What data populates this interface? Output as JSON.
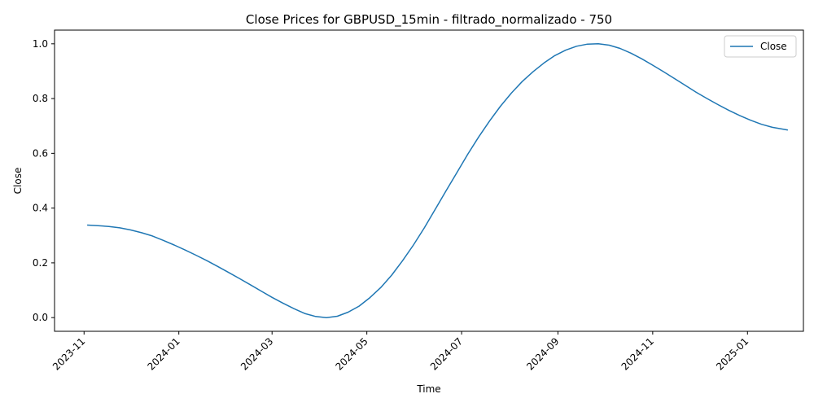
{
  "chart_data": {
    "type": "line",
    "title": "Close Prices for GBPUSD_15min - filtrado_normalizado - 750",
    "xlabel": "Time",
    "ylabel": "Close",
    "ylim": [
      -0.05,
      1.05
    ],
    "y_ticks": [
      "0.0",
      "0.2",
      "0.4",
      "0.6",
      "0.8",
      "1.0"
    ],
    "x_ticks": [
      "2023-11",
      "2024-01",
      "2024-03",
      "2024-05",
      "2024-07",
      "2024-09",
      "2024-11",
      "2025-01"
    ],
    "legend": {
      "position": "upper-right",
      "entries": [
        "Close"
      ]
    },
    "grid": false,
    "series": [
      {
        "name": "Close",
        "color": "#1f77b4",
        "x": [
          "2023-11-03",
          "2023-11-10",
          "2023-11-17",
          "2023-11-24",
          "2023-12-01",
          "2023-12-08",
          "2023-12-15",
          "2023-12-22",
          "2023-12-29",
          "2024-01-05",
          "2024-01-12",
          "2024-01-19",
          "2024-01-26",
          "2024-02-02",
          "2024-02-09",
          "2024-02-16",
          "2024-02-23",
          "2024-03-01",
          "2024-03-08",
          "2024-03-15",
          "2024-03-22",
          "2024-03-29",
          "2024-04-05",
          "2024-04-12",
          "2024-04-19",
          "2024-04-26",
          "2024-05-03",
          "2024-05-10",
          "2024-05-17",
          "2024-05-24",
          "2024-05-31",
          "2024-06-07",
          "2024-06-14",
          "2024-06-21",
          "2024-06-28",
          "2024-07-05",
          "2024-07-12",
          "2024-07-19",
          "2024-07-26",
          "2024-08-02",
          "2024-08-09",
          "2024-08-16",
          "2024-08-23",
          "2024-08-30",
          "2024-09-06",
          "2024-09-13",
          "2024-09-20",
          "2024-09-27",
          "2024-10-04",
          "2024-10-11",
          "2024-10-18",
          "2024-10-25",
          "2024-11-01",
          "2024-11-08",
          "2024-11-15",
          "2024-11-22",
          "2024-11-29",
          "2024-12-06",
          "2024-12-13",
          "2024-12-20",
          "2024-12-27",
          "2025-01-03",
          "2025-01-10",
          "2025-01-17",
          "2025-01-24",
          "2025-01-27"
        ],
        "y": [
          0.338,
          0.336,
          0.333,
          0.328,
          0.32,
          0.31,
          0.298,
          0.282,
          0.265,
          0.247,
          0.228,
          0.208,
          0.187,
          0.165,
          0.143,
          0.12,
          0.097,
          0.074,
          0.053,
          0.033,
          0.015,
          0.004,
          0.0,
          0.005,
          0.02,
          0.042,
          0.073,
          0.11,
          0.155,
          0.208,
          0.265,
          0.328,
          0.395,
          0.463,
          0.53,
          0.597,
          0.66,
          0.718,
          0.772,
          0.82,
          0.862,
          0.898,
          0.93,
          0.957,
          0.977,
          0.991,
          0.999,
          1.0,
          0.995,
          0.983,
          0.966,
          0.945,
          0.922,
          0.898,
          0.873,
          0.848,
          0.823,
          0.8,
          0.778,
          0.757,
          0.738,
          0.721,
          0.706,
          0.695,
          0.688,
          0.685
        ]
      }
    ]
  }
}
